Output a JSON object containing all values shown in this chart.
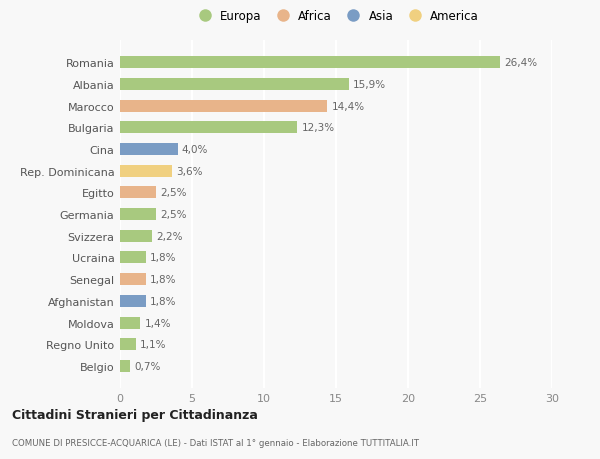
{
  "categories": [
    "Romania",
    "Albania",
    "Marocco",
    "Bulgaria",
    "Cina",
    "Rep. Dominicana",
    "Egitto",
    "Germania",
    "Svizzera",
    "Ucraina",
    "Senegal",
    "Afghanistan",
    "Moldova",
    "Regno Unito",
    "Belgio"
  ],
  "values": [
    26.4,
    15.9,
    14.4,
    12.3,
    4.0,
    3.6,
    2.5,
    2.5,
    2.2,
    1.8,
    1.8,
    1.8,
    1.4,
    1.1,
    0.7
  ],
  "labels": [
    "26,4%",
    "15,9%",
    "14,4%",
    "12,3%",
    "4,0%",
    "3,6%",
    "2,5%",
    "2,5%",
    "2,2%",
    "1,8%",
    "1,8%",
    "1,8%",
    "1,4%",
    "1,1%",
    "0,7%"
  ],
  "regions": [
    "Europa",
    "Europa",
    "Africa",
    "Europa",
    "Asia",
    "America",
    "Africa",
    "Europa",
    "Europa",
    "Europa",
    "Africa",
    "Asia",
    "Europa",
    "Europa",
    "Europa"
  ],
  "region_colors": {
    "Europa": "#a8c97f",
    "Africa": "#e8b48a",
    "Asia": "#7a9cc4",
    "America": "#f0d080"
  },
  "legend_order": [
    "Europa",
    "Africa",
    "Asia",
    "America"
  ],
  "xlim": [
    0,
    30
  ],
  "xticks": [
    0,
    5,
    10,
    15,
    20,
    25,
    30
  ],
  "title": "Cittadini Stranieri per Cittadinanza",
  "subtitle": "COMUNE DI PRESICCE-ACQUARICA (LE) - Dati ISTAT al 1° gennaio - Elaborazione TUTTITALIA.IT",
  "background_color": "#f8f8f8",
  "grid_color": "#ffffff",
  "bar_height": 0.55
}
